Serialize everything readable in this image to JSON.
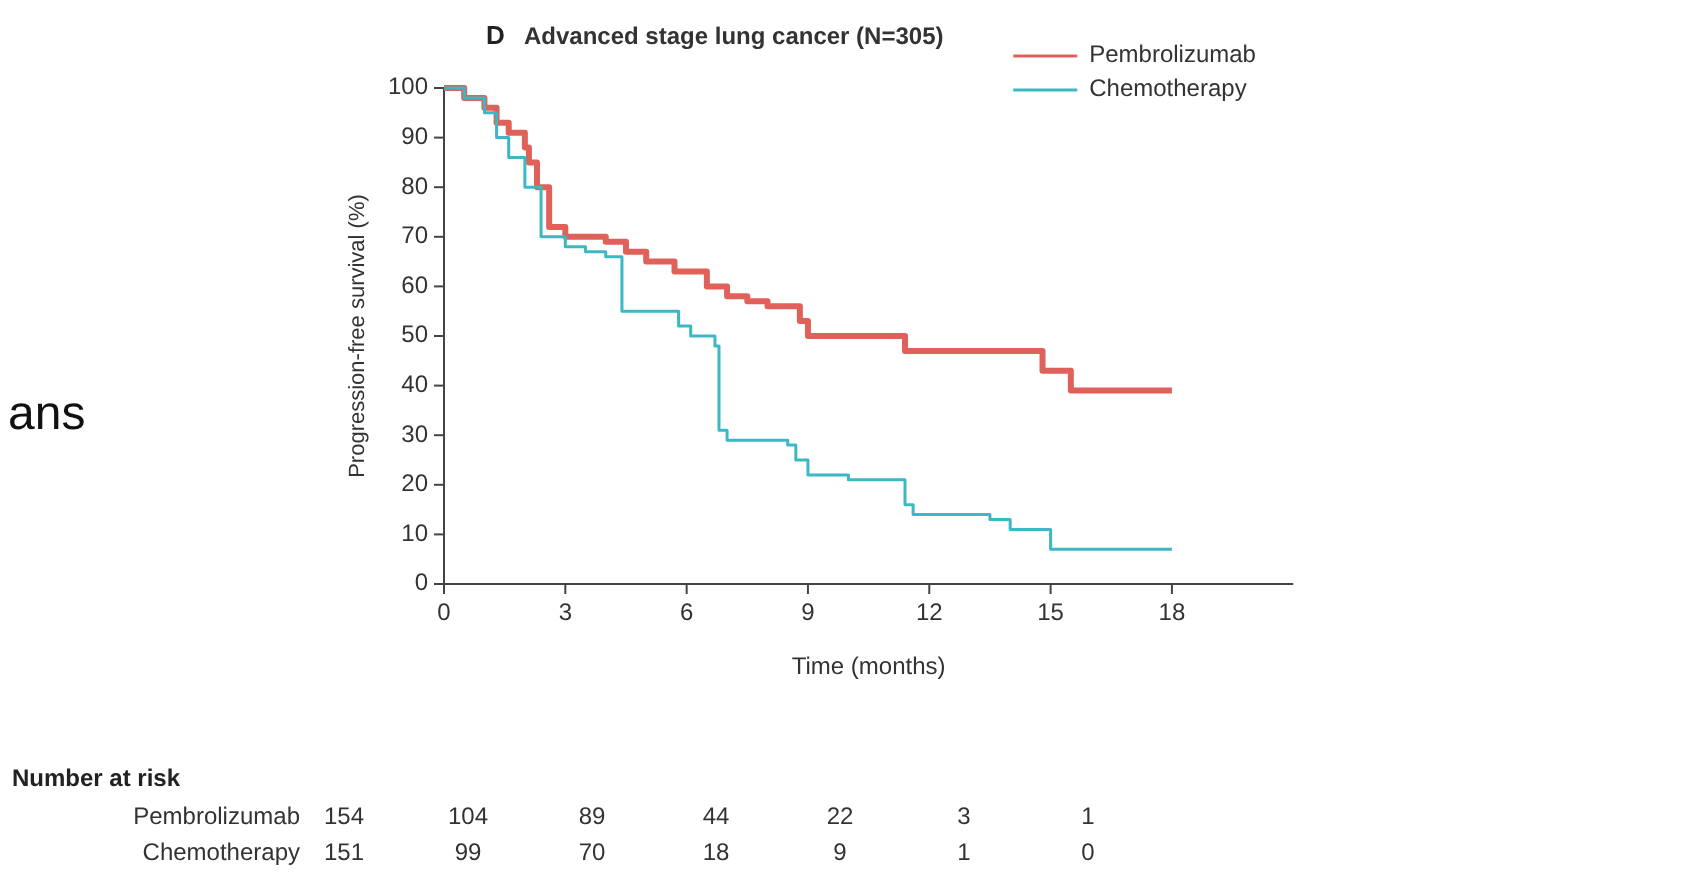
{
  "chart_data": {
    "type": "step",
    "title": "Advanced stage lung cancer (N=305)",
    "xlabel": "Time (months)",
    "ylabel": "Progression-free survival (%)",
    "annotations": [
      "D",
      "ans",
      "Number at risk",
      "Pembrolizumab 154 104 89 44 22 3 1",
      "Chemotherapy 151 99 70 18 9 1 0"
    ],
    "xlim": [
      0,
      21
    ],
    "xticks": [
      0,
      3,
      6,
      9,
      12,
      15,
      18
    ],
    "ylim": [
      0,
      100
    ],
    "yticks": [
      0,
      10,
      20,
      30,
      40,
      50,
      60,
      70,
      80,
      90,
      100
    ],
    "grid": false,
    "legend": "top right",
    "line_style": "solid",
    "series": [
      {
        "name": "Pembrolizumab",
        "color": "#e0605a",
        "x": [
          0,
          0.5,
          1,
          1.3,
          1.6,
          2,
          2.1,
          2.3,
          2.6,
          3,
          4,
          4.5,
          5,
          5.7,
          6.5,
          7,
          7.5,
          8,
          8.8,
          9,
          11.4,
          14.8,
          15.5,
          18
        ],
        "values": [
          100,
          98,
          96,
          93,
          91,
          88,
          85,
          80,
          72,
          70,
          69,
          67,
          65,
          63,
          60,
          58,
          57,
          56,
          53,
          50,
          47,
          43,
          39,
          39
        ]
      },
      {
        "name": "Chemotherapy",
        "color": "#3bb8c4",
        "x": [
          0,
          0.5,
          1,
          1.3,
          1.6,
          2,
          2.4,
          3,
          3.5,
          4,
          4.4,
          5.8,
          6.1,
          6.7,
          6.8,
          7,
          8.5,
          8.7,
          9,
          10,
          11.4,
          11.6,
          13.5,
          14,
          15,
          18
        ],
        "values": [
          100,
          98,
          95,
          90,
          86,
          80,
          70,
          68,
          67,
          66,
          55,
          52,
          50,
          48,
          31,
          29,
          28,
          25,
          22,
          21,
          16,
          14,
          13,
          11,
          7,
          7
        ]
      }
    ]
  }
}
